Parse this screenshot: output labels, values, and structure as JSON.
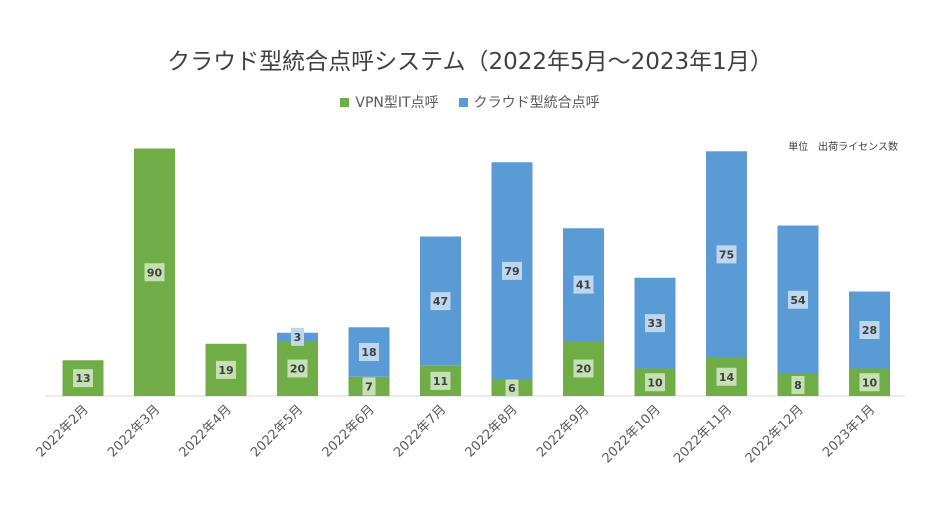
{
  "chart_data": {
    "type": "bar",
    "stacked": true,
    "title": "クラウド型統合点呼システム（2022年5月～2023年1月）",
    "unit_note": "単位　出荷ライセンス数",
    "categories": [
      "2022年2月",
      "2022年3月",
      "2022年4月",
      "2022年5月",
      "2022年6月",
      "2022年7月",
      "2022年8月",
      "2022年9月",
      "2022年10月",
      "2022年11月",
      "2022年12月",
      "2023年1月"
    ],
    "series": [
      {
        "name": "VPN型IT点呼",
        "color": "#70ad47",
        "values": [
          13,
          90,
          19,
          20,
          7,
          11,
          6,
          20,
          10,
          14,
          8,
          10
        ]
      },
      {
        "name": "クラウド型統合点呼",
        "color": "#5b9bd5",
        "values": [
          null,
          null,
          null,
          3,
          18,
          47,
          79,
          41,
          33,
          75,
          54,
          28
        ]
      }
    ],
    "legend_position": "top",
    "grid": false
  }
}
